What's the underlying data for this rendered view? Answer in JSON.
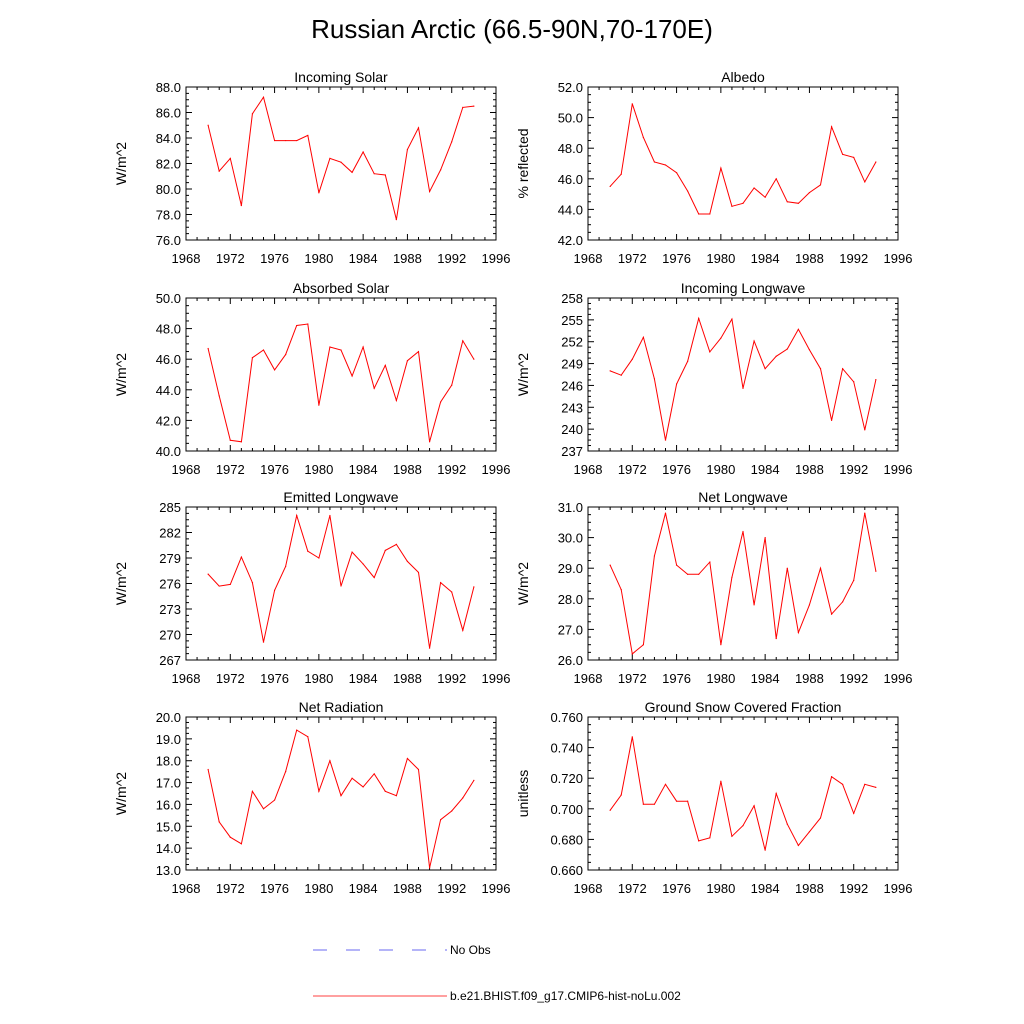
{
  "title": "Russian Arctic (66.5-90N,70-170E)",
  "legend": [
    {
      "label": "No Obs",
      "color": "#6a6af0",
      "dash": true
    },
    {
      "label": "b.e21.BHIST.f09_g17.CMIP6-hist-noLu.002",
      "color": "#ff4040",
      "dash": false
    }
  ],
  "chart_data": [
    {
      "type": "line",
      "title": "Incoming Solar",
      "ylabel": "W/m^2",
      "xlim": [
        1968,
        1996
      ],
      "xticks": [
        1968,
        1972,
        1976,
        1980,
        1984,
        1988,
        1992,
        1996
      ],
      "ylim": [
        76,
        88
      ],
      "yticks": [
        76,
        78,
        80,
        82,
        84,
        86,
        88
      ],
      "ytick_labels": [
        "76.0",
        "78.0",
        "80.0",
        "82.0",
        "84.0",
        "86.0",
        "88.0"
      ],
      "x": [
        1970,
        1971,
        1972,
        1973,
        1974,
        1975,
        1976,
        1977,
        1978,
        1979,
        1980,
        1981,
        1982,
        1983,
        1984,
        1985,
        1986,
        1987,
        1988,
        1989,
        1990,
        1991,
        1992,
        1993,
        1994
      ],
      "series": [
        {
          "name": "b.e21.BHIST.f09_g17.CMIP6-hist-noLu.002",
          "color": "#ff0000",
          "values": [
            85.0,
            81.4,
            82.4,
            78.7,
            85.9,
            87.2,
            83.8,
            83.8,
            83.8,
            84.2,
            79.7,
            82.4,
            82.1,
            81.3,
            82.9,
            81.2,
            81.1,
            77.6,
            83.1,
            84.8,
            79.8,
            81.5,
            83.7,
            86.4,
            86.5
          ]
        }
      ]
    },
    {
      "type": "line",
      "title": "Albedo",
      "ylabel": "% reflected",
      "xlim": [
        1968,
        1996
      ],
      "xticks": [
        1968,
        1972,
        1976,
        1980,
        1984,
        1988,
        1992,
        1996
      ],
      "ylim": [
        42,
        52
      ],
      "yticks": [
        42,
        44,
        46,
        48,
        50,
        52
      ],
      "ytick_labels": [
        "42.0",
        "44.0",
        "46.0",
        "48.0",
        "50.0",
        "52.0"
      ],
      "x": [
        1970,
        1971,
        1972,
        1973,
        1974,
        1975,
        1976,
        1977,
        1978,
        1979,
        1980,
        1981,
        1982,
        1983,
        1984,
        1985,
        1986,
        1987,
        1988,
        1989,
        1990,
        1991,
        1992,
        1993,
        1994
      ],
      "series": [
        {
          "name": "b.e21.BHIST.f09_g17.CMIP6-hist-noLu.002",
          "color": "#ff0000",
          "values": [
            45.5,
            46.3,
            50.9,
            48.7,
            47.1,
            46.9,
            46.4,
            45.2,
            43.7,
            43.7,
            46.7,
            44.2,
            44.4,
            45.4,
            44.8,
            46.0,
            44.5,
            44.4,
            45.1,
            45.6,
            49.4,
            47.6,
            47.4,
            45.8,
            47.1
          ]
        }
      ]
    },
    {
      "type": "line",
      "title": "Absorbed Solar",
      "ylabel": "W/m^2",
      "xlim": [
        1968,
        1996
      ],
      "xticks": [
        1968,
        1972,
        1976,
        1980,
        1984,
        1988,
        1992,
        1996
      ],
      "ylim": [
        40,
        50
      ],
      "yticks": [
        40,
        42,
        44,
        46,
        48,
        50
      ],
      "ytick_labels": [
        "40.0",
        "42.0",
        "44.0",
        "46.0",
        "48.0",
        "50.0"
      ],
      "x": [
        1970,
        1971,
        1972,
        1973,
        1974,
        1975,
        1976,
        1977,
        1978,
        1979,
        1980,
        1981,
        1982,
        1983,
        1984,
        1985,
        1986,
        1987,
        1988,
        1989,
        1990,
        1991,
        1992,
        1993,
        1994
      ],
      "series": [
        {
          "name": "b.e21.BHIST.f09_g17.CMIP6-hist-noLu.002",
          "color": "#ff0000",
          "values": [
            46.7,
            43.6,
            40.7,
            40.6,
            46.1,
            46.6,
            45.3,
            46.3,
            48.2,
            48.3,
            43.0,
            46.8,
            46.6,
            44.9,
            46.8,
            44.1,
            45.6,
            43.3,
            45.9,
            46.5,
            40.6,
            43.2,
            44.3,
            47.2,
            46.0
          ]
        }
      ]
    },
    {
      "type": "line",
      "title": "Incoming Longwave",
      "ylabel": "W/m^2",
      "xlim": [
        1968,
        1996
      ],
      "xticks": [
        1968,
        1972,
        1976,
        1980,
        1984,
        1988,
        1992,
        1996
      ],
      "ylim": [
        237,
        258
      ],
      "yticks": [
        237,
        240,
        243,
        246,
        249,
        252,
        255,
        258
      ],
      "ytick_labels": [
        "237",
        "240",
        "243",
        "246",
        "249",
        "252",
        "255",
        "258"
      ],
      "x": [
        1970,
        1971,
        1972,
        1973,
        1974,
        1975,
        1976,
        1977,
        1978,
        1979,
        1980,
        1981,
        1982,
        1983,
        1984,
        1985,
        1986,
        1987,
        1988,
        1989,
        1990,
        1991,
        1992,
        1993,
        1994
      ],
      "series": [
        {
          "name": "b.e21.BHIST.f09_g17.CMIP6-hist-noLu.002",
          "color": "#ff0000",
          "values": [
            248.0,
            247.4,
            249.6,
            252.6,
            246.9,
            238.5,
            246.2,
            249.3,
            255.2,
            250.6,
            252.5,
            255.1,
            245.6,
            252.1,
            248.3,
            250.0,
            251.0,
            253.7,
            250.9,
            248.3,
            241.2,
            248.3,
            246.5,
            239.9,
            246.8
          ]
        }
      ]
    },
    {
      "type": "line",
      "title": "Emitted Longwave",
      "ylabel": "W/m^2",
      "xlim": [
        1968,
        1996
      ],
      "xticks": [
        1968,
        1972,
        1976,
        1980,
        1984,
        1988,
        1992,
        1996
      ],
      "ylim": [
        267,
        285
      ],
      "yticks": [
        267,
        270,
        273,
        276,
        279,
        282,
        285
      ],
      "ytick_labels": [
        "267",
        "270",
        "273",
        "276",
        "279",
        "282",
        "285"
      ],
      "x": [
        1970,
        1971,
        1972,
        1973,
        1974,
        1975,
        1976,
        1977,
        1978,
        1979,
        1980,
        1981,
        1982,
        1983,
        1984,
        1985,
        1986,
        1987,
        1988,
        1989,
        1990,
        1991,
        1992,
        1993,
        1994
      ],
      "series": [
        {
          "name": "b.e21.BHIST.f09_g17.CMIP6-hist-noLu.002",
          "color": "#ff0000",
          "values": [
            277.1,
            275.7,
            275.9,
            279.1,
            276.1,
            269.1,
            275.2,
            278.0,
            284.0,
            279.8,
            279.0,
            284.0,
            275.7,
            279.7,
            278.3,
            276.7,
            279.9,
            280.6,
            278.6,
            277.3,
            268.4,
            276.1,
            275.0,
            270.5,
            275.6
          ]
        }
      ]
    },
    {
      "type": "line",
      "title": "Net Longwave",
      "ylabel": "W/m^2",
      "xlim": [
        1968,
        1996
      ],
      "xticks": [
        1968,
        1972,
        1976,
        1980,
        1984,
        1988,
        1992,
        1996
      ],
      "ylim": [
        26,
        31
      ],
      "yticks": [
        26,
        27,
        28,
        29,
        30,
        31
      ],
      "ytick_labels": [
        "26.0",
        "27.0",
        "28.0",
        "29.0",
        "30.0",
        "31.0"
      ],
      "x": [
        1970,
        1971,
        1972,
        1973,
        1974,
        1975,
        1976,
        1977,
        1978,
        1979,
        1980,
        1981,
        1982,
        1983,
        1984,
        1985,
        1986,
        1987,
        1988,
        1989,
        1990,
        1991,
        1992,
        1993,
        1994
      ],
      "series": [
        {
          "name": "b.e21.BHIST.f09_g17.CMIP6-hist-noLu.002",
          "color": "#ff0000",
          "values": [
            29.1,
            28.3,
            26.2,
            26.5,
            29.4,
            30.8,
            29.1,
            28.8,
            28.8,
            29.2,
            26.5,
            28.7,
            30.2,
            27.8,
            30.0,
            26.7,
            29.0,
            26.9,
            27.8,
            29.0,
            27.5,
            27.9,
            28.6,
            30.8,
            28.9
          ]
        }
      ]
    },
    {
      "type": "line",
      "title": "Net Radiation",
      "ylabel": "W/m^2",
      "xlim": [
        1968,
        1996
      ],
      "xticks": [
        1968,
        1972,
        1976,
        1980,
        1984,
        1988,
        1992,
        1996
      ],
      "ylim": [
        13,
        20
      ],
      "yticks": [
        13,
        14,
        15,
        16,
        17,
        18,
        19,
        20
      ],
      "ytick_labels": [
        "13.0",
        "14.0",
        "15.0",
        "16.0",
        "17.0",
        "18.0",
        "19.0",
        "20.0"
      ],
      "x": [
        1970,
        1971,
        1972,
        1973,
        1974,
        1975,
        1976,
        1977,
        1978,
        1979,
        1980,
        1981,
        1982,
        1983,
        1984,
        1985,
        1986,
        1987,
        1988,
        1989,
        1990,
        1991,
        1992,
        1993,
        1994
      ],
      "series": [
        {
          "name": "b.e21.BHIST.f09_g17.CMIP6-hist-noLu.002",
          "color": "#ff0000",
          "values": [
            17.6,
            15.2,
            14.5,
            14.2,
            16.6,
            15.8,
            16.2,
            17.5,
            19.4,
            19.1,
            16.6,
            18.0,
            16.4,
            17.2,
            16.8,
            17.4,
            16.6,
            16.4,
            18.1,
            17.6,
            13.1,
            15.3,
            15.7,
            16.3,
            17.1
          ]
        }
      ]
    },
    {
      "type": "line",
      "title": "Ground Snow Covered Fraction",
      "ylabel": "unitless",
      "xlim": [
        1968,
        1996
      ],
      "xticks": [
        1968,
        1972,
        1976,
        1980,
        1984,
        1988,
        1992,
        1996
      ],
      "ylim": [
        0.66,
        0.76
      ],
      "yticks": [
        0.66,
        0.68,
        0.7,
        0.72,
        0.74,
        0.76
      ],
      "ytick_labels": [
        "0.660",
        "0.680",
        "0.700",
        "0.720",
        "0.740",
        "0.760"
      ],
      "x": [
        1970,
        1971,
        1972,
        1973,
        1974,
        1975,
        1976,
        1977,
        1978,
        1979,
        1980,
        1981,
        1982,
        1983,
        1984,
        1985,
        1986,
        1987,
        1988,
        1989,
        1990,
        1991,
        1992,
        1993,
        1994
      ],
      "series": [
        {
          "name": "b.e21.BHIST.f09_g17.CMIP6-hist-noLu.002",
          "color": "#ff0000",
          "values": [
            0.699,
            0.709,
            0.747,
            0.703,
            0.703,
            0.716,
            0.705,
            0.705,
            0.679,
            0.681,
            0.718,
            0.682,
            0.689,
            0.702,
            0.673,
            0.71,
            0.69,
            0.676,
            0.685,
            0.694,
            0.721,
            0.716,
            0.697,
            0.716,
            0.714
          ]
        }
      ]
    }
  ]
}
